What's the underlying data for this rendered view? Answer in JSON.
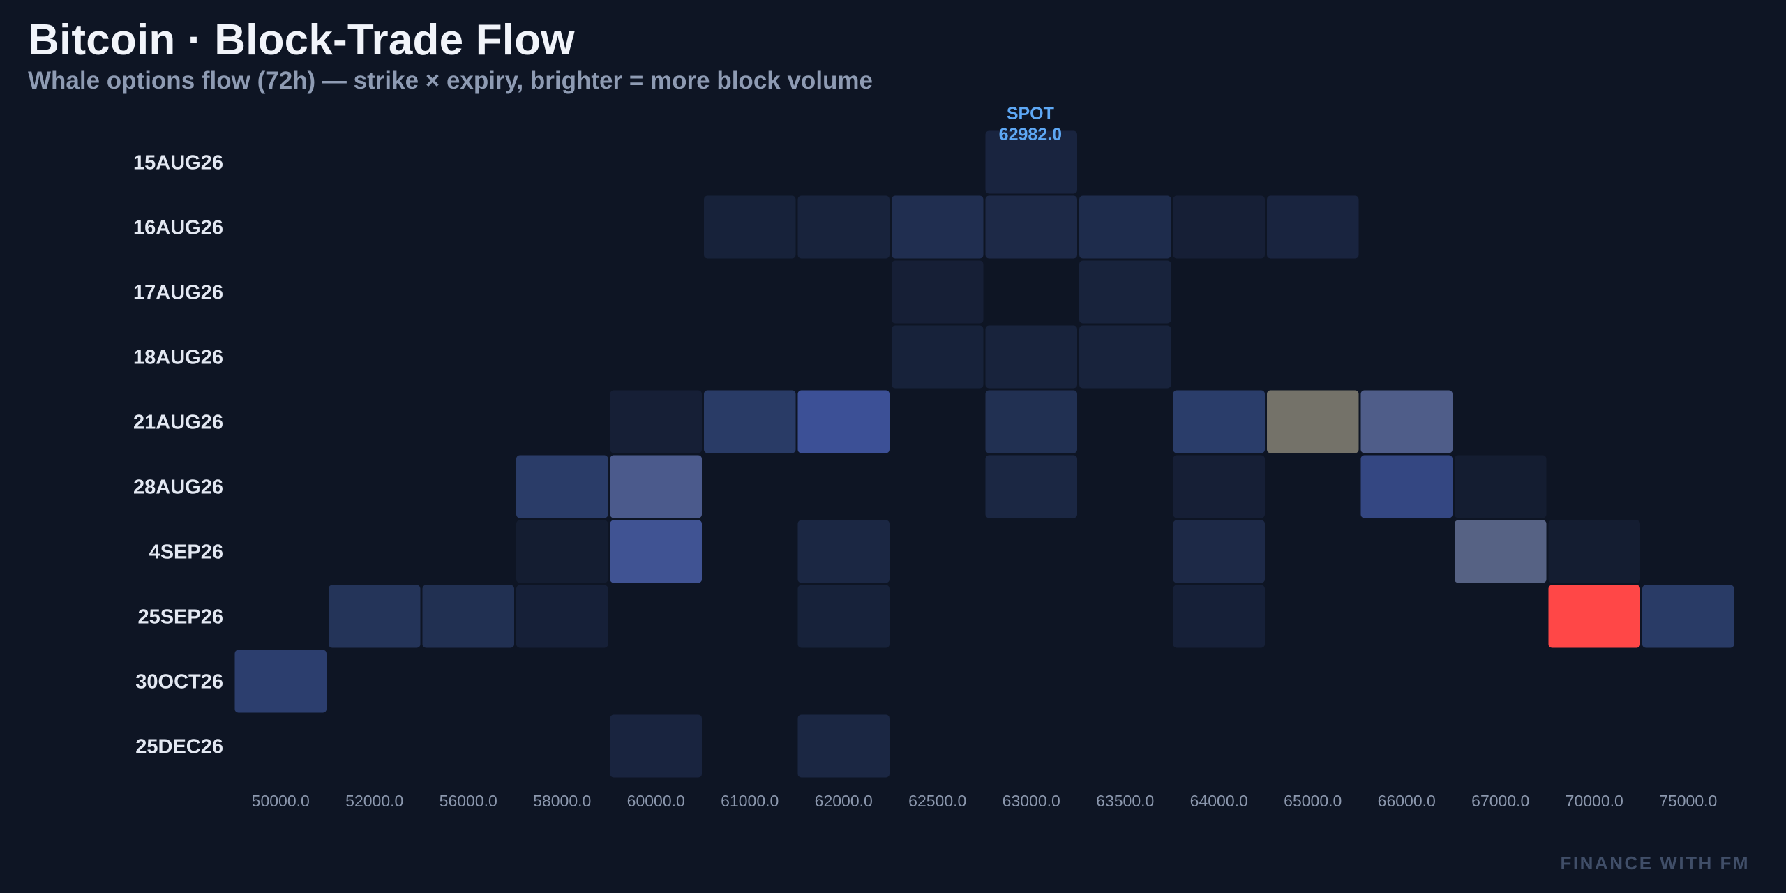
{
  "title": "Bitcoin · Block-Trade Flow",
  "subtitle": "Whale options flow (72h) — strike × expiry, brighter = more block volume",
  "watermark": "FINANCE WITH FM",
  "chart_data": {
    "type": "heatmap",
    "title": "Bitcoin · Block-Trade Flow",
    "subtitle": "Whale options flow (72h) — strike × expiry, brighter = more block volume",
    "x_categories": [
      "50000.0",
      "52000.0",
      "56000.0",
      "58000.0",
      "60000.0",
      "61000.0",
      "62000.0",
      "62500.0",
      "63000.0",
      "63500.0",
      "64000.0",
      "65000.0",
      "66000.0",
      "67000.0",
      "70000.0",
      "75000.0"
    ],
    "y_categories": [
      "15AUG26",
      "16AUG26",
      "17AUG26",
      "18AUG26",
      "21AUG26",
      "28AUG26",
      "4SEP26",
      "25SEP26",
      "30OCT26",
      "25DEC26"
    ],
    "intensity_scale": "relative block volume, 0 = none, 1 = max (not printed on chart)",
    "cells": [
      {
        "expiry": "15AUG26",
        "strike": "63000.0",
        "value": 0.08
      },
      {
        "expiry": "16AUG26",
        "strike": "61000.0",
        "value": 0.06
      },
      {
        "expiry": "16AUG26",
        "strike": "62000.0",
        "value": 0.07
      },
      {
        "expiry": "16AUG26",
        "strike": "62500.0",
        "value": 0.16
      },
      {
        "expiry": "16AUG26",
        "strike": "63000.0",
        "value": 0.12
      },
      {
        "expiry": "16AUG26",
        "strike": "63500.0",
        "value": 0.14
      },
      {
        "expiry": "16AUG26",
        "strike": "64000.0",
        "value": 0.04
      },
      {
        "expiry": "16AUG26",
        "strike": "65000.0",
        "value": 0.08
      },
      {
        "expiry": "17AUG26",
        "strike": "62500.0",
        "value": 0.04
      },
      {
        "expiry": "17AUG26",
        "strike": "63500.0",
        "value": 0.07
      },
      {
        "expiry": "18AUG26",
        "strike": "62500.0",
        "value": 0.06
      },
      {
        "expiry": "18AUG26",
        "strike": "63000.0",
        "value": 0.07
      },
      {
        "expiry": "18AUG26",
        "strike": "63500.0",
        "value": 0.07
      },
      {
        "expiry": "21AUG26",
        "strike": "60000.0",
        "value": 0.04
      },
      {
        "expiry": "21AUG26",
        "strike": "61000.0",
        "value": 0.26
      },
      {
        "expiry": "21AUG26",
        "strike": "62000.0",
        "value": 0.5
      },
      {
        "expiry": "21AUG26",
        "strike": "63000.0",
        "value": 0.17
      },
      {
        "expiry": "21AUG26",
        "strike": "64000.0",
        "value": 0.28
      },
      {
        "expiry": "21AUG26",
        "strike": "65000.0",
        "value": 0.75
      },
      {
        "expiry": "21AUG26",
        "strike": "66000.0",
        "value": 0.6
      },
      {
        "expiry": "28AUG26",
        "strike": "58000.0",
        "value": 0.27
      },
      {
        "expiry": "28AUG26",
        "strike": "60000.0",
        "value": 0.58
      },
      {
        "expiry": "28AUG26",
        "strike": "63000.0",
        "value": 0.1
      },
      {
        "expiry": "28AUG26",
        "strike": "64000.0",
        "value": 0.04
      },
      {
        "expiry": "28AUG26",
        "strike": "66000.0",
        "value": 0.4
      },
      {
        "expiry": "28AUG26",
        "strike": "67000.0",
        "value": 0.02
      },
      {
        "expiry": "4SEP26",
        "strike": "58000.0",
        "value": 0.02
      },
      {
        "expiry": "4SEP26",
        "strike": "60000.0",
        "value": 0.52
      },
      {
        "expiry": "4SEP26",
        "strike": "62000.0",
        "value": 0.1
      },
      {
        "expiry": "4SEP26",
        "strike": "64000.0",
        "value": 0.12
      },
      {
        "expiry": "4SEP26",
        "strike": "67000.0",
        "value": 0.64
      },
      {
        "expiry": "4SEP26",
        "strike": "70000.0",
        "value": 0.02
      },
      {
        "expiry": "25SEP26",
        "strike": "52000.0",
        "value": 0.2
      },
      {
        "expiry": "25SEP26",
        "strike": "56000.0",
        "value": 0.17
      },
      {
        "expiry": "25SEP26",
        "strike": "58000.0",
        "value": 0.05
      },
      {
        "expiry": "25SEP26",
        "strike": "62000.0",
        "value": 0.06
      },
      {
        "expiry": "25SEP26",
        "strike": "64000.0",
        "value": 0.05
      },
      {
        "expiry": "25SEP26",
        "strike": "70000.0",
        "value": 1.0
      },
      {
        "expiry": "25SEP26",
        "strike": "75000.0",
        "value": 0.26
      },
      {
        "expiry": "30OCT26",
        "strike": "50000.0",
        "value": 0.3
      },
      {
        "expiry": "25DEC26",
        "strike": "60000.0",
        "value": 0.08
      },
      {
        "expiry": "25DEC26",
        "strike": "62000.0",
        "value": 0.1
      }
    ],
    "spot": {
      "label": "SPOT",
      "value": "62982.0",
      "strike_position": 63006
    },
    "grid": false,
    "legend": "none"
  }
}
